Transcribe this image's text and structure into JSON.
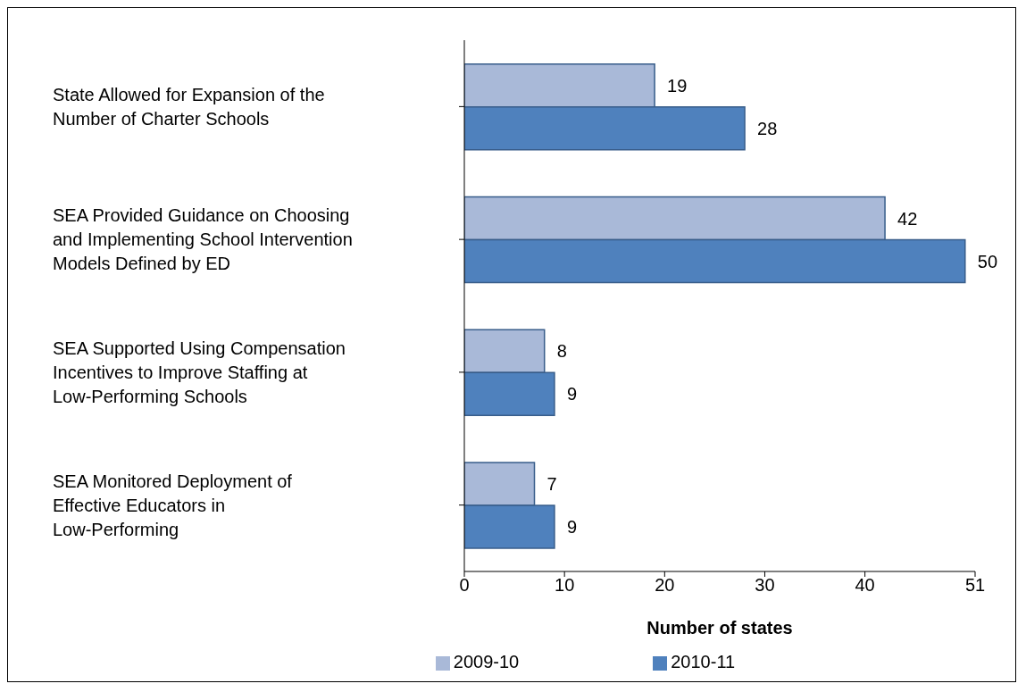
{
  "chart_data": {
    "type": "bar",
    "orientation": "horizontal",
    "xlabel": "Number of states",
    "categories": [
      "State Allowed for Expansion of the Number of Charter Schools",
      "SEA Provided Guidance on Choosing and Implementing School Intervention Models Defined by ED",
      "SEA Supported Using Compensation Incentives to Improve Staffing at Low-Performing Schools",
      "SEA Monitored Deployment of Effective Educators in Low-Performing"
    ],
    "series": [
      {
        "name": "2009-10",
        "color": "#a9b9d8",
        "values": [
          19,
          42,
          8,
          7
        ]
      },
      {
        "name": "2010-11",
        "color": "#4f81bd",
        "values": [
          28,
          50,
          9,
          9
        ]
      }
    ],
    "xlim": [
      0,
      51
    ],
    "xticks": [
      0,
      10,
      20,
      30,
      40,
      51
    ],
    "data_labels": true,
    "legend": "bottom",
    "grid": false
  }
}
